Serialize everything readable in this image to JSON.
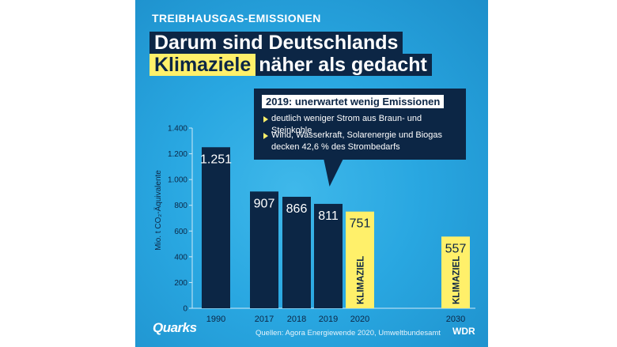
{
  "header": {
    "kicker": "TREIBHAUSGAS-EMISSIONEN",
    "title_line1": "Darum sind Deutschlands",
    "title_line2_highlight": "Klimaziele",
    "title_line2_rest": "näher als gedacht"
  },
  "callout": {
    "heading": "2019: unerwartet wenig Emissionen",
    "items": [
      "deutlich weniger Strom aus Braun- und Steinkohle",
      "Wind, Wasserkraft, Solarenergie und Biogas decken 42,6 % des Strombedarfs"
    ]
  },
  "footer": {
    "brand": "Quarks",
    "source": "Quellen: Agora Energiewende 2020, Umweltbundesamt",
    "broadcaster": "WDR"
  },
  "chart_data": {
    "type": "bar",
    "ylabel": "Mio. t CO₂-Äquivalente",
    "ylim": [
      0,
      1400
    ],
    "yticks": [
      0,
      200,
      400,
      600,
      800,
      "1.000",
      "1.200",
      "1.400"
    ],
    "yticks_values": [
      0,
      200,
      400,
      600,
      800,
      1000,
      1200,
      1400
    ],
    "categories": [
      "1990",
      "2017",
      "2018",
      "2019",
      "2020",
      "2030"
    ],
    "values": [
      1251,
      907,
      866,
      811,
      751,
      557
    ],
    "value_labels": [
      "1.251",
      "907",
      "866",
      "811",
      "751",
      "557"
    ],
    "bar_kind": [
      "actual",
      "actual",
      "actual",
      "actual",
      "target",
      "target"
    ],
    "target_label": "KLIMAZIEL",
    "colors": {
      "actual": "#0c2645",
      "target": "#fff06a",
      "axis": "#cfe9f7",
      "background": "#29a7e1"
    }
  }
}
